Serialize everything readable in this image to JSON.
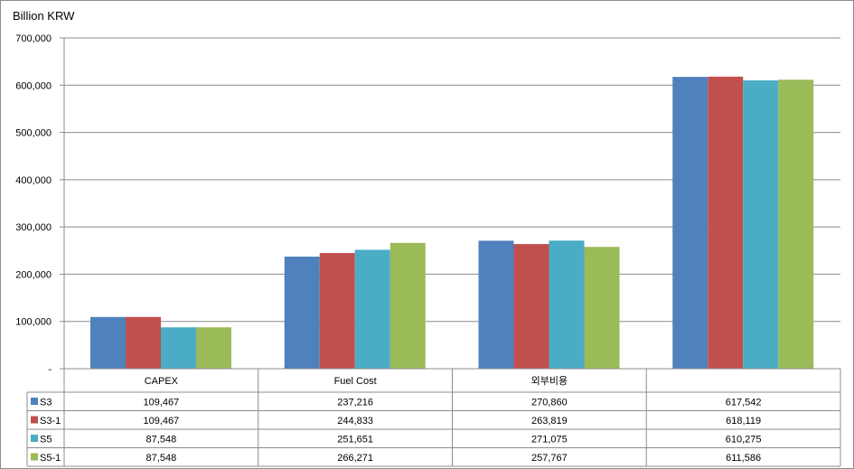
{
  "chart_data": {
    "type": "bar",
    "title": "",
    "ylabel": "Billion KRW",
    "xlabel": "",
    "ylim": [
      0,
      700000
    ],
    "yticks": [
      0,
      100000,
      200000,
      300000,
      400000,
      500000,
      600000,
      700000
    ],
    "ytick_labels": [
      "-",
      "100,000",
      "200,000",
      "300,000",
      "400,000",
      "500,000",
      "600,000",
      "700,000"
    ],
    "categories": [
      "CAPEX",
      "Fuel Cost",
      "외부비용",
      ""
    ],
    "series": [
      {
        "name": "S3",
        "color": "#4F81BD",
        "values": [
          109467,
          237216,
          270860,
          617542
        ],
        "labels": [
          "109,467",
          "237,216",
          "270,860",
          "617,542"
        ]
      },
      {
        "name": "S3-1",
        "color": "#C0504D",
        "values": [
          109467,
          244833,
          263819,
          618119
        ],
        "labels": [
          "109,467",
          "244,833",
          "263,819",
          "618,119"
        ]
      },
      {
        "name": "S5",
        "color": "#4BACC6",
        "values": [
          87548,
          251651,
          271075,
          610275
        ],
        "labels": [
          "87,548",
          "251,651",
          "271,075",
          "610,275"
        ]
      },
      {
        "name": "S5-1",
        "color": "#9BBB59",
        "values": [
          87548,
          266271,
          257767,
          611586
        ],
        "labels": [
          "87,548",
          "266,271",
          "257,767",
          "611,586"
        ]
      }
    ],
    "grid": true,
    "legend": "data-table"
  }
}
